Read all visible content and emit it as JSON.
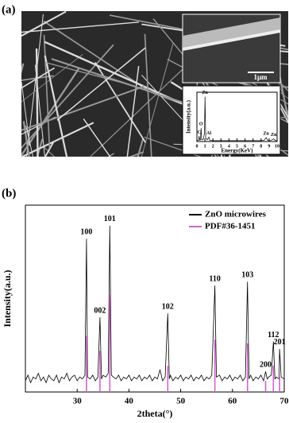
{
  "panels": {
    "a": "(a)",
    "b": "(b)"
  },
  "scale_bar": "1μm",
  "chart_data": [
    {
      "type": "line",
      "ylabel": "Intensity(a.u.)",
      "xlabel": "Energy(KeV)",
      "xlim": [
        0,
        10
      ],
      "ylim": [
        0,
        110
      ],
      "xticks": [
        0,
        1,
        2,
        3,
        4,
        5,
        6,
        7,
        8,
        9,
        10
      ],
      "x": [
        0,
        0.2,
        0.28,
        0.35,
        0.45,
        0.52,
        0.6,
        0.8,
        0.95,
        1.01,
        1.1,
        1.3,
        1.49,
        1.6,
        2,
        3,
        4,
        5,
        6,
        7,
        8,
        8.4,
        8.63,
        8.8,
        9.3,
        9.57,
        9.8,
        10
      ],
      "series": [
        {
          "color": "#000000",
          "values": [
            2,
            3,
            12,
            3,
            4,
            30,
            4,
            5,
            20,
            100,
            8,
            4,
            10,
            3,
            2,
            2,
            2,
            2,
            2,
            2,
            2,
            3,
            9,
            3,
            3,
            6,
            2,
            2
          ]
        }
      ],
      "peak_labels": [
        {
          "text": "Zn",
          "x": 1.01
        },
        {
          "text": "O",
          "x": 0.52
        },
        {
          "text": "C",
          "x": 0.28
        },
        {
          "text": "Al",
          "x": 1.49
        },
        {
          "text": "Zn",
          "x": 8.63
        },
        {
          "text": "Zn",
          "x": 9.57
        }
      ]
    },
    {
      "type": "line",
      "ylabel": "Intensity(a.u.)",
      "xlabel": "2theta(°)",
      "xlim": [
        20,
        70
      ],
      "ylim": [
        0,
        100
      ],
      "xticks": [
        30,
        40,
        50,
        60,
        70
      ],
      "legend": "upper right",
      "x": [
        20,
        20.5,
        21,
        21.5,
        22,
        22.5,
        23,
        23.5,
        24,
        24.5,
        25,
        25.5,
        26,
        26.5,
        27,
        27.5,
        28,
        28.5,
        29,
        29.5,
        30,
        30.5,
        31,
        31.5,
        31.8,
        32,
        32.5,
        33,
        33.5,
        34,
        34.4,
        34.7,
        35,
        35.5,
        36,
        36.3,
        36.6,
        37,
        37.5,
        38,
        38.5,
        39,
        39.5,
        40,
        40.5,
        41,
        41.5,
        42,
        42.5,
        43,
        43.5,
        44,
        44.5,
        45,
        45.5,
        46,
        46.5,
        47,
        47.5,
        47.8,
        48,
        48.5,
        49,
        49.5,
        50,
        50.5,
        51,
        51.5,
        52,
        52.5,
        53,
        53.5,
        54,
        54.5,
        55,
        55.5,
        56,
        56.6,
        56.9,
        57.5,
        58,
        58.5,
        59,
        59.5,
        60,
        60.5,
        61,
        61.5,
        62,
        62.5,
        62.9,
        63.2,
        63.5,
        64,
        64.5,
        65,
        65.5,
        66,
        66.4,
        66.7,
        67,
        67.5,
        67.9,
        68.2,
        68.5,
        69,
        69.1,
        69.4,
        70
      ],
      "series": [
        {
          "name": "ZnO microwires",
          "color": "#000000",
          "values": [
            6,
            9,
            5,
            8,
            7,
            10,
            6,
            8,
            5,
            9,
            7,
            6,
            9,
            5,
            8,
            7,
            10,
            6,
            8,
            9,
            6,
            8,
            7,
            9,
            82,
            8,
            7,
            9,
            6,
            8,
            40,
            7,
            9,
            8,
            10,
            89,
            9,
            8,
            7,
            9,
            6,
            8,
            7,
            9,
            6,
            8,
            7,
            9,
            6,
            8,
            7,
            9,
            6,
            8,
            7,
            12,
            6,
            8,
            42,
            7,
            9,
            6,
            8,
            7,
            9,
            6,
            8,
            7,
            9,
            6,
            8,
            7,
            9,
            6,
            8,
            7,
            9,
            57,
            8,
            9,
            6,
            8,
            7,
            9,
            6,
            8,
            7,
            9,
            6,
            8,
            59,
            7,
            9,
            6,
            8,
            7,
            9,
            6,
            11,
            7,
            8,
            9,
            27,
            7,
            8,
            7,
            23,
            8,
            7
          ]
        },
        {
          "name": "PDF#36-1451",
          "color": "#cc66cc",
          "style": "stick",
          "x": [
            31.8,
            34.4,
            36.3,
            47.5,
            56.6,
            62.9,
            66.4,
            67.9,
            69.1
          ],
          "values": [
            30,
            22,
            52,
            14,
            28,
            26,
            6,
            14,
            8
          ]
        }
      ],
      "peak_labels": [
        {
          "text": "100",
          "x": 31.8
        },
        {
          "text": "002",
          "x": 34.4
        },
        {
          "text": "101",
          "x": 36.3
        },
        {
          "text": "102",
          "x": 47.5
        },
        {
          "text": "110",
          "x": 56.6
        },
        {
          "text": "103",
          "x": 62.9
        },
        {
          "text": "200",
          "x": 66.4
        },
        {
          "text": "112",
          "x": 67.9
        },
        {
          "text": "201",
          "x": 69.1
        }
      ]
    }
  ]
}
